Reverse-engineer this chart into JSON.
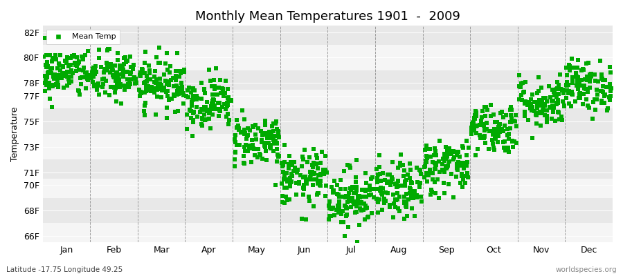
{
  "title": "Monthly Mean Temperatures 1901  -  2009",
  "ylabel": "Temperature",
  "subtitle_left": "Latitude -17.75 Longitude 49.25",
  "subtitle_right": "worldspecies.org",
  "dot_color": "#00aa00",
  "bg_color": "#ffffff",
  "ytick_labels": [
    "66F",
    "68F",
    "70F",
    "71F",
    "73F",
    "75F",
    "77F",
    "78F",
    "80F",
    "82F"
  ],
  "ytick_values": [
    66,
    68,
    70,
    71,
    73,
    75,
    77,
    78,
    80,
    82
  ],
  "ylim": [
    65.5,
    82.5
  ],
  "months": [
    "Jan",
    "Feb",
    "Mar",
    "Apr",
    "May",
    "Jun",
    "Jul",
    "Aug",
    "Sep",
    "Oct",
    "Nov",
    "Dec"
  ],
  "mean_temps_by_month": [
    78.8,
    78.5,
    78.0,
    76.5,
    73.5,
    70.5,
    69.0,
    69.5,
    71.5,
    74.5,
    76.5,
    77.8
  ],
  "std_temps_by_month": [
    1.0,
    1.0,
    1.0,
    1.0,
    1.0,
    1.1,
    1.2,
    1.1,
    1.1,
    1.0,
    1.0,
    1.0
  ],
  "n_years": 109,
  "seed": 42,
  "marker_size": 14,
  "dashed_line_color": "#888888",
  "band_colors": [
    "#ffffff",
    "#eeeeee"
  ],
  "hband_colors": [
    "#f5f5f5",
    "#e8e8e8"
  ]
}
